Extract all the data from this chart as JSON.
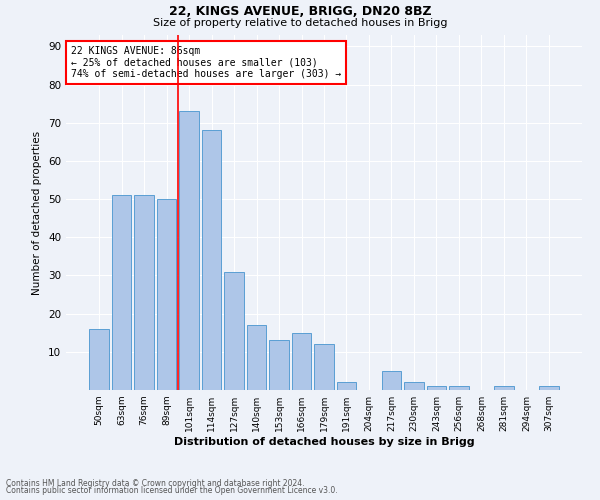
{
  "title1": "22, KINGS AVENUE, BRIGG, DN20 8BZ",
  "title2": "Size of property relative to detached houses in Brigg",
  "xlabel": "Distribution of detached houses by size in Brigg",
  "ylabel": "Number of detached properties",
  "footnote1": "Contains HM Land Registry data © Crown copyright and database right 2024.",
  "footnote2": "Contains public sector information licensed under the Open Government Licence v3.0.",
  "bar_labels": [
    "50sqm",
    "63sqm",
    "76sqm",
    "89sqm",
    "101sqm",
    "114sqm",
    "127sqm",
    "140sqm",
    "153sqm",
    "166sqm",
    "179sqm",
    "191sqm",
    "204sqm",
    "217sqm",
    "230sqm",
    "243sqm",
    "256sqm",
    "268sqm",
    "281sqm",
    "294sqm",
    "307sqm"
  ],
  "bar_values": [
    16,
    51,
    51,
    50,
    73,
    68,
    31,
    17,
    13,
    15,
    12,
    2,
    0,
    5,
    2,
    1,
    1,
    0,
    1,
    0,
    1
  ],
  "bar_color": "#aec6e8",
  "bar_edge_color": "#5a9fd4",
  "vline_x": 3.5,
  "vline_color": "red",
  "annotation_text": "22 KINGS AVENUE: 86sqm\n← 25% of detached houses are smaller (103)\n74% of semi-detached houses are larger (303) →",
  "annotation_box_color": "white",
  "annotation_box_edgecolor": "red",
  "ylim": [
    0,
    93
  ],
  "yticks": [
    0,
    10,
    20,
    30,
    40,
    50,
    60,
    70,
    80,
    90
  ],
  "bg_color": "#eef2f9",
  "grid_color": "white"
}
